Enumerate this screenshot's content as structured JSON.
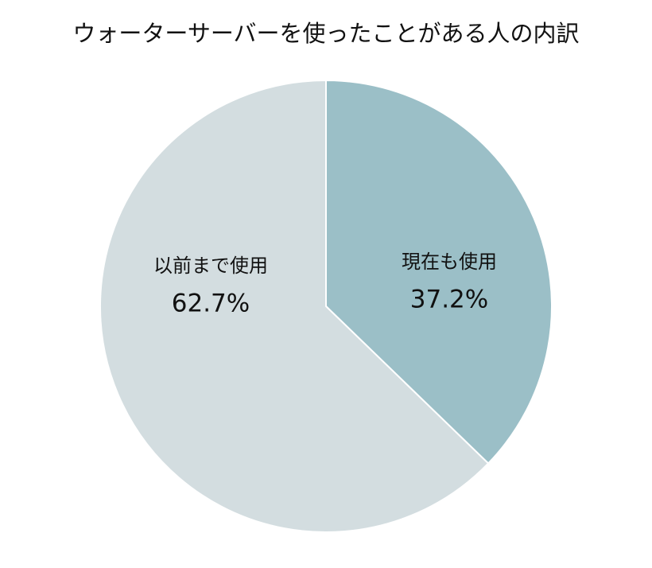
{
  "chart_data": {
    "type": "pie",
    "title": "ウォーターサーバーを使ったことがある人の内訳",
    "categories": [
      "現在も使用",
      "以前まで使用"
    ],
    "values": [
      37.2,
      62.7
    ],
    "value_labels": [
      "37.2%",
      "62.7%"
    ],
    "colors": [
      "#9bbfc7",
      "#d3dde0"
    ]
  }
}
